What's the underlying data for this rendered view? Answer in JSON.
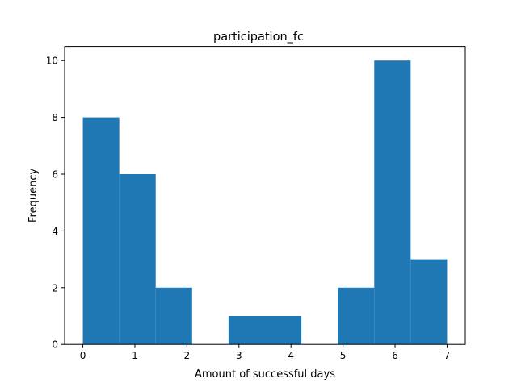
{
  "chart_data": {
    "type": "bar",
    "title": "participation_fc",
    "xlabel": "Amount of successful days",
    "ylabel": "Frequency",
    "bin_edges": [
      0,
      0.7,
      1.4,
      2.1,
      2.8,
      3.5,
      4.2,
      4.9,
      5.6,
      6.3,
      7.0
    ],
    "values": [
      8,
      6,
      2,
      0,
      1,
      1,
      0,
      2,
      10,
      3
    ],
    "xlim": [
      -0.35,
      7.35
    ],
    "ylim": [
      0,
      10.5
    ],
    "xticks": [
      0,
      1,
      2,
      3,
      4,
      5,
      6,
      7
    ],
    "yticks": [
      0,
      2,
      4,
      6,
      8,
      10
    ],
    "bar_color": "#1f77b4",
    "grid": false,
    "legend": false
  }
}
